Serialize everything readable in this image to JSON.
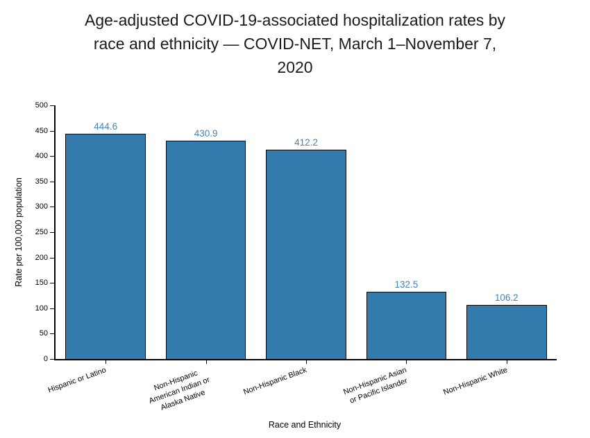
{
  "title": {
    "lines": [
      "Age-adjusted COVID-19-associated hospitalization rates by",
      "race and ethnicity — COVID-NET, March 1–November 7,",
      "2020"
    ]
  },
  "chart_data": {
    "type": "bar",
    "title": "Age-adjusted COVID-19-associated hospitalization rates by race and ethnicity — COVID-NET, March 1–November 7, 2020",
    "categories": [
      "Hispanic or Latino",
      "Non-Hispanic\nAmerican Indian or\nAlaska Native",
      "Non-Hispanic Black",
      "Non-Hispanic Asian\nor Pacific Islander",
      "Non-Hispanic White"
    ],
    "values": [
      444.6,
      430.9,
      412.2,
      132.5,
      106.2
    ],
    "value_labels": [
      "444.6",
      "430.9",
      "412.2",
      "132.5",
      "106.2"
    ],
    "xlabel": "Race and Ethnicity",
    "ylabel": "Rate per 100,000 population",
    "ylim": [
      0,
      500
    ],
    "ytick_step": 50,
    "yticks": [
      0,
      50,
      100,
      150,
      200,
      250,
      300,
      350,
      400,
      450,
      500
    ],
    "grid": false,
    "legend": false,
    "bar_color": "#337aad",
    "bar_edge_color": "#000000",
    "value_label_color": "#4682b4"
  }
}
